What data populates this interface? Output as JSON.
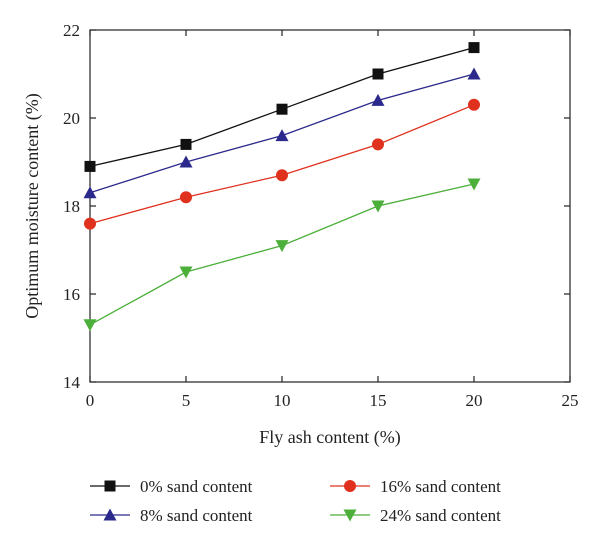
{
  "chart_data": {
    "type": "line",
    "title": "",
    "xlabel": "Fly ash content (%)",
    "ylabel": "Optimum moisture content (%)",
    "xlim": [
      0,
      25
    ],
    "ylim": [
      14,
      22
    ],
    "xticks": [
      0,
      5,
      10,
      15,
      20,
      25
    ],
    "yticks": [
      14,
      16,
      18,
      20,
      22
    ],
    "grid": false,
    "legend_placement": "bottom",
    "x": [
      0,
      5,
      10,
      15,
      20
    ],
    "series": [
      {
        "name": "0% sand content",
        "values": [
          18.9,
          19.4,
          20.2,
          21.0,
          21.6
        ],
        "color": "#111111",
        "marker": "square"
      },
      {
        "name": "8% sand content",
        "values": [
          18.3,
          19.0,
          19.6,
          20.4,
          21.0
        ],
        "color": "#2b2a8c",
        "marker": "triangle-up"
      },
      {
        "name": "16% sand content",
        "values": [
          17.6,
          18.2,
          18.7,
          19.4,
          20.3
        ],
        "color": "#e0301e",
        "marker": "circle"
      },
      {
        "name": "24% sand content",
        "values": [
          15.3,
          16.5,
          17.1,
          18.0,
          18.5
        ],
        "color": "#4caf3a",
        "marker": "triangle-down"
      }
    ]
  }
}
